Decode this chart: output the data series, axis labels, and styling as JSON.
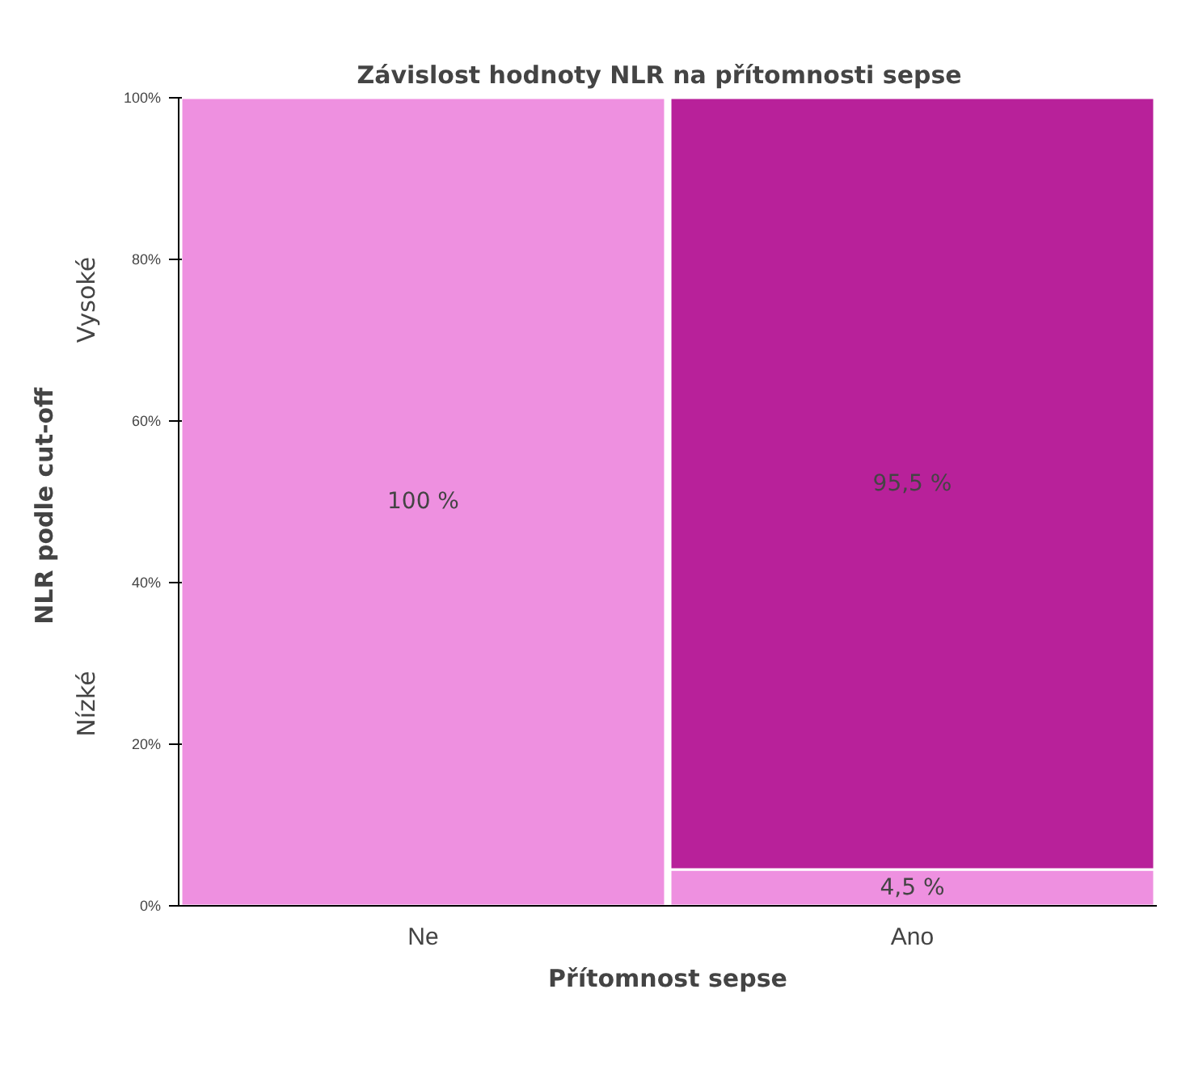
{
  "chart_data": {
    "type": "bar",
    "title": "Závislost hodnoty  NLR  na přítomnosti sepse",
    "xlabel": "Přítomnost sepse",
    "ylabel": "NLR  podle cut-off",
    "categories": [
      "Ne",
      "Ano"
    ],
    "stacked": true,
    "ylim": [
      0,
      100
    ],
    "yticks": [
      {
        "value": 0,
        "label": "0%"
      },
      {
        "value": 20,
        "label": "20%"
      },
      {
        "value": 40,
        "label": "40%"
      },
      {
        "value": 60,
        "label": "60%"
      },
      {
        "value": 80,
        "label": "80%"
      },
      {
        "value": 100,
        "label": "100%"
      }
    ],
    "annotations": [
      "Vysoké",
      "Nízké"
    ],
    "series": [
      {
        "color": "#ee90e0",
        "values": [
          100,
          4.5
        ],
        "value_labels": [
          "100 %",
          "4,5 %"
        ]
      },
      {
        "color": "#b8219a",
        "values": [
          0,
          95.5
        ],
        "value_labels": [
          null,
          "95,5 %"
        ]
      }
    ]
  }
}
